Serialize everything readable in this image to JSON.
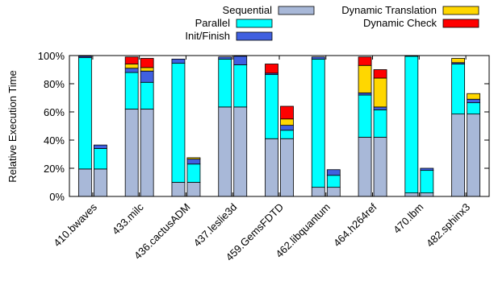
{
  "chart_data": {
    "type": "bar",
    "stacked": true,
    "bars_per_category": 2,
    "ylabel": "Relative Execution Time",
    "xlabel": "",
    "ylim": [
      0,
      100
    ],
    "yticks": [
      "0%",
      "20%",
      "40%",
      "60%",
      "80%",
      "100%"
    ],
    "grid": false,
    "legend_position": "top",
    "categories": [
      "410.bwaves",
      "433.milc",
      "436.cactusADM",
      "437.leslie3d",
      "459.GemsFDTD",
      "462.libquantum",
      "464.h264ref",
      "470.lbm",
      "482.sphinx3"
    ],
    "series": [
      {
        "name": "Sequential",
        "color": "#a8b8d8",
        "values": [
          [
            19.5,
            19.5
          ],
          [
            62,
            62
          ],
          [
            10,
            10
          ],
          [
            63.5,
            63.5
          ],
          [
            41,
            41
          ],
          [
            6.5,
            6.5
          ],
          [
            42,
            42
          ],
          [
            2.5,
            2.5
          ],
          [
            58.5,
            58.5
          ]
        ]
      },
      {
        "name": "Parallel",
        "color": "#00ffff",
        "values": [
          [
            79,
            14.5
          ],
          [
            26,
            19
          ],
          [
            84.5,
            13
          ],
          [
            34,
            30
          ],
          [
            45.5,
            6
          ],
          [
            91,
            8.5
          ],
          [
            30,
            19.5
          ],
          [
            97,
            16
          ],
          [
            35.5,
            8
          ]
        ]
      },
      {
        "name": "Init/Finish",
        "color": "#4060e0",
        "values": [
          [
            1,
            2.5
          ],
          [
            3,
            8
          ],
          [
            3,
            3.5
          ],
          [
            1.5,
            6
          ],
          [
            1,
            3.5
          ],
          [
            1.5,
            4
          ],
          [
            1.5,
            2
          ],
          [
            0.5,
            1.5
          ],
          [
            1,
            2.5
          ]
        ]
      },
      {
        "name": "Dynamic Translation",
        "color": "#ffd700",
        "values": [
          [
            0,
            0
          ],
          [
            3,
            2.5
          ],
          [
            0,
            1
          ],
          [
            0,
            0
          ],
          [
            0,
            4.5
          ],
          [
            0,
            0
          ],
          [
            19.5,
            20.5
          ],
          [
            0,
            0
          ],
          [
            3,
            4
          ]
        ]
      },
      {
        "name": "Dynamic Check",
        "color": "#ff0000",
        "values": [
          [
            0,
            0
          ],
          [
            5,
            6.5
          ],
          [
            0,
            0
          ],
          [
            0,
            0
          ],
          [
            6.5,
            9
          ],
          [
            0,
            0
          ],
          [
            6,
            6
          ],
          [
            0,
            0
          ],
          [
            0,
            0
          ]
        ]
      }
    ]
  }
}
